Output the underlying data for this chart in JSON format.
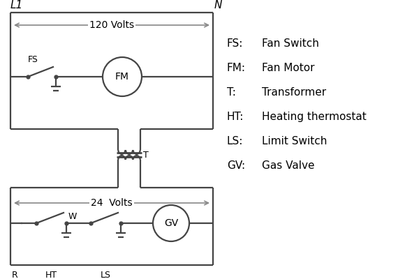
{
  "bg_color": "#ffffff",
  "line_color": "#444444",
  "arrow_color": "#888888",
  "text_color": "#000000",
  "legend_items": [
    [
      "FS:",
      "Fan Switch"
    ],
    [
      "FM:",
      "Fan Motor"
    ],
    [
      "T:",
      "Transformer"
    ],
    [
      "HT:",
      "Heating thermostat"
    ],
    [
      "LS:",
      "Limit Switch"
    ],
    [
      "GV:",
      "Gas Valve"
    ]
  ],
  "L1_label": "L1",
  "N_label": "N",
  "volts120_label": "120 Volts",
  "volts24_label": "24  Volts",
  "T_label": "T",
  "R_label": "R",
  "W_label": "W",
  "HT_label": "HT",
  "LS_label": "LS",
  "FS_label": "FS",
  "FM_label": "FM",
  "GV_label": "GV"
}
